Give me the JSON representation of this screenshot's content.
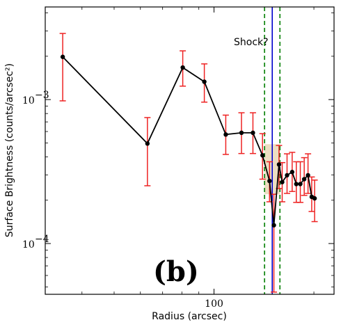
{
  "chart_data": {
    "type": "line",
    "panel_label": "(b)",
    "xlabel": "Radius (arcsec)",
    "ylabel": "Surface Brightness (counts/arcsec²)",
    "xscale": "log",
    "yscale": "log",
    "xlim": [
      31,
      230
    ],
    "ylim": [
      4.44e-05,
      0.0044
    ],
    "x_ticks": [
      {
        "value": 100,
        "label": "100"
      }
    ],
    "y_ticks": [
      {
        "value": 0.001,
        "label": "10",
        "exponent": "−3"
      },
      {
        "value": 0.0001,
        "label": "10",
        "exponent": "−4"
      }
    ],
    "annotations": [
      {
        "text": "Shock?"
      }
    ],
    "vlines": [
      {
        "x": 142,
        "color": "#1a8a1a",
        "style": "dashed"
      },
      {
        "x": 149.8,
        "color": "#0000cc",
        "style": "solid"
      },
      {
        "x": 158,
        "color": "#1a8a1a",
        "style": "dashed"
      }
    ],
    "colors": {
      "line": "#000000",
      "errorbar": "#ee2222",
      "dashed_line": "#1a8a1a",
      "solid_line": "#0000cc",
      "shaded": "#c8a050"
    },
    "series": [
      {
        "x": [
          35,
          63,
          80.5,
          93.5,
          108.5,
          121,
          131,
          140,
          147,
          151.5,
          157,
          160.5,
          166,
          172,
          177,
          182,
          187,
          192,
          197,
          201
        ],
        "y": [
          0.00198,
          0.000495,
          0.00167,
          0.00133,
          0.000572,
          0.000588,
          0.000588,
          0.00041,
          0.000272,
          0.000134,
          0.000354,
          0.000267,
          0.000298,
          0.000314,
          0.000259,
          0.000259,
          0.00028,
          0.000298,
          0.000211,
          0.000206
        ],
        "y_err_low": [
          0.001,
          0.000243,
          0.00043,
          0.00037,
          0.000156,
          0.000166,
          0.000166,
          0.00013,
          7.7e-05,
          8.8e-05,
          0.000113,
          7.2e-05,
          7.5e-05,
          8.4e-05,
          6.6e-05,
          6.6e-05,
          6.4e-05,
          7.5e-05,
          4.4e-05,
          6.4e-05
        ],
        "y_err_high": [
          0.0009,
          0.000255,
          0.00051,
          0.00044,
          0.000208,
          0.000222,
          0.000222,
          0.00017,
          9.8e-05,
          8.6e-05,
          0.000126,
          9.8e-05,
          0.000122,
          0.000116,
          0.000111,
          0.000111,
          0.000115,
          0.000122,
          7.9e-05,
          7e-05
        ]
      }
    ]
  }
}
